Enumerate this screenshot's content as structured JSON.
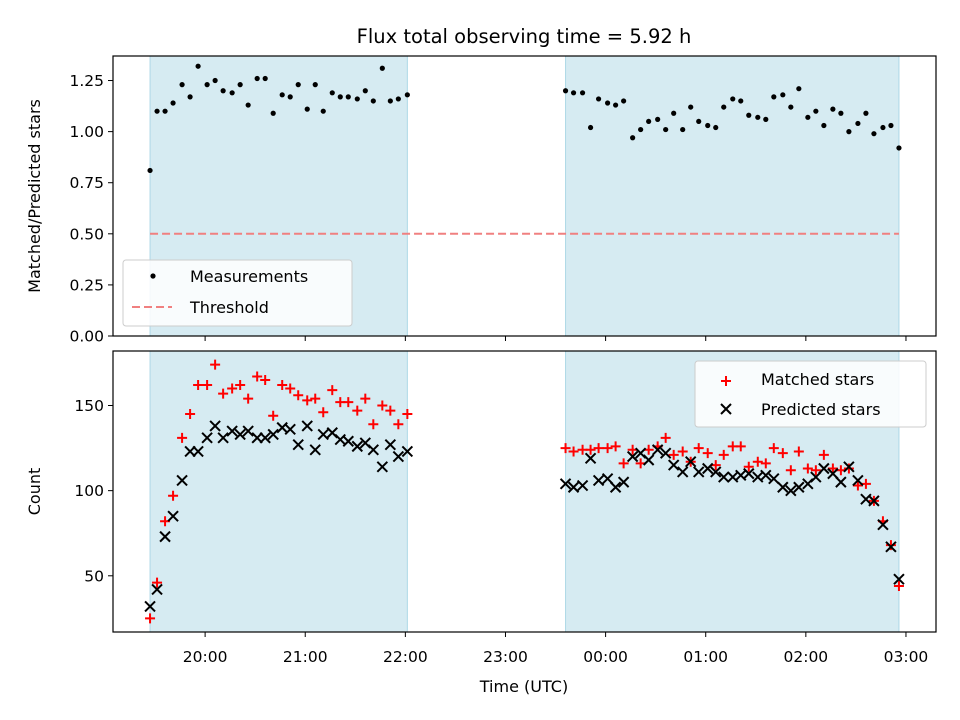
{
  "figure": {
    "title": "Flux total observing time = 5.92 h",
    "xlabel": "Time (UTC)",
    "xticks": [
      "20:00",
      "21:00",
      "22:00",
      "23:00",
      "00:00",
      "01:00",
      "02:00",
      "03:00"
    ]
  },
  "chart_data": [
    {
      "type": "scatter",
      "ylabel": "Matched/Predicted stars",
      "ylim": [
        0,
        1.37
      ],
      "yticks": [
        "0.00",
        "0.25",
        "0.50",
        "0.75",
        "1.00",
        "1.25"
      ],
      "xlim_hours": [
        19.08,
        27.3
      ],
      "shaded_intervals": [
        [
          19.45,
          22.02
        ],
        [
          23.6,
          26.93
        ]
      ],
      "threshold": {
        "name": "Threshold",
        "value": 0.5,
        "color": "#f08080"
      },
      "series": [
        {
          "name": "Measurements",
          "color": "#000000",
          "x": [
            19.45,
            19.52,
            19.6,
            19.68,
            19.77,
            19.85,
            19.93,
            20.02,
            20.1,
            20.18,
            20.27,
            20.35,
            20.43,
            20.52,
            20.6,
            20.68,
            20.77,
            20.85,
            20.93,
            21.02,
            21.1,
            21.18,
            21.27,
            21.35,
            21.43,
            21.52,
            21.6,
            21.68,
            21.77,
            21.85,
            21.93,
            22.02,
            23.6,
            23.68,
            23.77,
            23.85,
            23.93,
            24.02,
            24.1,
            24.18,
            24.27,
            24.35,
            24.43,
            24.52,
            24.6,
            24.68,
            24.77,
            24.85,
            24.93,
            25.02,
            25.1,
            25.18,
            25.27,
            25.35,
            25.43,
            25.52,
            25.6,
            25.68,
            25.77,
            25.85,
            25.93,
            26.02,
            26.1,
            26.18,
            26.27,
            26.35,
            26.43,
            26.52,
            26.6,
            26.68,
            26.77,
            26.85,
            26.93
          ],
          "y": [
            0.81,
            1.1,
            1.1,
            1.14,
            1.23,
            1.17,
            1.32,
            1.23,
            1.25,
            1.2,
            1.19,
            1.23,
            1.13,
            1.26,
            1.26,
            1.09,
            1.18,
            1.17,
            1.23,
            1.11,
            1.23,
            1.1,
            1.19,
            1.17,
            1.17,
            1.16,
            1.2,
            1.15,
            1.31,
            1.15,
            1.16,
            1.18,
            1.2,
            1.19,
            1.19,
            1.02,
            1.16,
            1.14,
            1.13,
            1.15,
            0.97,
            1.01,
            1.05,
            1.06,
            1.01,
            1.09,
            1.01,
            1.12,
            1.05,
            1.03,
            1.02,
            1.12,
            1.16,
            1.15,
            1.08,
            1.07,
            1.06,
            1.17,
            1.18,
            1.12,
            1.21,
            1.07,
            1.1,
            1.03,
            1.11,
            1.09,
            1.0,
            1.04,
            1.09,
            0.99,
            1.02,
            1.03,
            0.92
          ]
        }
      ]
    },
    {
      "type": "scatter",
      "ylabel": "Count",
      "ylim": [
        17,
        182
      ],
      "yticks": [
        "50",
        "100",
        "150"
      ],
      "xlim_hours": [
        19.08,
        27.3
      ],
      "shaded_intervals": [
        [
          19.45,
          22.02
        ],
        [
          23.6,
          26.93
        ]
      ],
      "series": [
        {
          "name": "Matched stars",
          "color": "#ff0000",
          "marker": "+",
          "x": [
            19.45,
            19.52,
            19.6,
            19.68,
            19.77,
            19.85,
            19.93,
            20.02,
            20.1,
            20.18,
            20.27,
            20.35,
            20.43,
            20.52,
            20.6,
            20.68,
            20.77,
            20.85,
            20.93,
            21.02,
            21.1,
            21.18,
            21.27,
            21.35,
            21.43,
            21.52,
            21.6,
            21.68,
            21.77,
            21.85,
            21.93,
            22.02,
            23.6,
            23.68,
            23.77,
            23.85,
            23.93,
            24.02,
            24.1,
            24.18,
            24.27,
            24.35,
            24.43,
            24.52,
            24.6,
            24.68,
            24.77,
            24.85,
            24.93,
            25.02,
            25.1,
            25.18,
            25.27,
            25.35,
            25.43,
            25.52,
            25.6,
            25.68,
            25.77,
            25.85,
            25.93,
            26.02,
            26.1,
            26.18,
            26.27,
            26.35,
            26.43,
            26.52,
            26.6,
            26.68,
            26.77,
            26.85,
            26.93
          ],
          "y": [
            25,
            46,
            82,
            97,
            131,
            145,
            162,
            162,
            174,
            157,
            160,
            162,
            154,
            167,
            165,
            144,
            162,
            160,
            156,
            153,
            154,
            146,
            159,
            152,
            152,
            147,
            154,
            139,
            150,
            147,
            139,
            145,
            125,
            123,
            124,
            124,
            125,
            125,
            126,
            116,
            124,
            116,
            124,
            126,
            131,
            121,
            123,
            117,
            125,
            122,
            115,
            121,
            126,
            126,
            114,
            117,
            116,
            125,
            122,
            112,
            123,
            113,
            112,
            121,
            113,
            112,
            113,
            103,
            104,
            94,
            82,
            68,
            44
          ]
        },
        {
          "name": "Predicted stars",
          "color": "#000000",
          "marker": "x",
          "x": [
            19.45,
            19.52,
            19.6,
            19.68,
            19.77,
            19.85,
            19.93,
            20.02,
            20.1,
            20.18,
            20.27,
            20.35,
            20.43,
            20.52,
            20.6,
            20.68,
            20.77,
            20.85,
            20.93,
            21.02,
            21.1,
            21.18,
            21.27,
            21.35,
            21.43,
            21.52,
            21.6,
            21.68,
            21.77,
            21.85,
            21.93,
            22.02,
            23.6,
            23.68,
            23.77,
            23.85,
            23.93,
            24.02,
            24.1,
            24.18,
            24.27,
            24.35,
            24.43,
            24.52,
            24.6,
            24.68,
            24.77,
            24.85,
            24.93,
            25.02,
            25.1,
            25.18,
            25.27,
            25.35,
            25.43,
            25.52,
            25.6,
            25.68,
            25.77,
            25.85,
            25.93,
            26.02,
            26.1,
            26.18,
            26.27,
            26.35,
            26.43,
            26.52,
            26.6,
            26.68,
            26.77,
            26.85,
            26.93
          ],
          "y": [
            32,
            42,
            73,
            85,
            106,
            123,
            123,
            131,
            138,
            131,
            135,
            133,
            135,
            131,
            131,
            133,
            137,
            136,
            127,
            138,
            124,
            133,
            134,
            130,
            129,
            126,
            128,
            124,
            114,
            127,
            120,
            123,
            104,
            102,
            103,
            119,
            106,
            107,
            102,
            105,
            120,
            122,
            118,
            124,
            122,
            115,
            111,
            117,
            111,
            113,
            111,
            108,
            108,
            109,
            110,
            108,
            109,
            107,
            102,
            100,
            102,
            104,
            108,
            113,
            110,
            105,
            114,
            106,
            95,
            94,
            80,
            67,
            48
          ]
        }
      ]
    }
  ]
}
